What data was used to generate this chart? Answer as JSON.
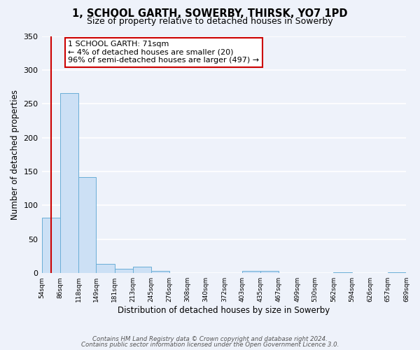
{
  "title": "1, SCHOOL GARTH, SOWERBY, THIRSK, YO7 1PD",
  "subtitle": "Size of property relative to detached houses in Sowerby",
  "xlabel": "Distribution of detached houses by size in Sowerby",
  "ylabel": "Number of detached properties",
  "bar_edges": [
    54,
    86,
    118,
    149,
    181,
    213,
    245,
    276,
    308,
    340,
    372,
    403,
    435,
    467,
    499,
    530,
    562,
    594,
    626,
    657,
    689
  ],
  "bar_heights": [
    82,
    266,
    142,
    14,
    6,
    9,
    3,
    0,
    0,
    0,
    0,
    3,
    3,
    0,
    0,
    0,
    1,
    0,
    0,
    1
  ],
  "bar_color": "#cce0f5",
  "bar_edge_color": "#6aaed6",
  "ylim": [
    0,
    350
  ],
  "yticks": [
    0,
    50,
    100,
    150,
    200,
    250,
    300,
    350
  ],
  "property_line_x": 71,
  "property_line_color": "#cc0000",
  "annotation_text": "1 SCHOOL GARTH: 71sqm\n← 4% of detached houses are smaller (20)\n96% of semi-detached houses are larger (497) →",
  "annotation_box_color": "#ffffff",
  "annotation_box_edgecolor": "#cc0000",
  "footer_line1": "Contains HM Land Registry data © Crown copyright and database right 2024.",
  "footer_line2": "Contains public sector information licensed under the Open Government Licence 3.0.",
  "tick_labels": [
    "54sqm",
    "86sqm",
    "118sqm",
    "149sqm",
    "181sqm",
    "213sqm",
    "245sqm",
    "276sqm",
    "308sqm",
    "340sqm",
    "372sqm",
    "403sqm",
    "435sqm",
    "467sqm",
    "499sqm",
    "530sqm",
    "562sqm",
    "594sqm",
    "626sqm",
    "657sqm",
    "689sqm"
  ],
  "background_color": "#eef2fa",
  "grid_color": "#ffffff"
}
